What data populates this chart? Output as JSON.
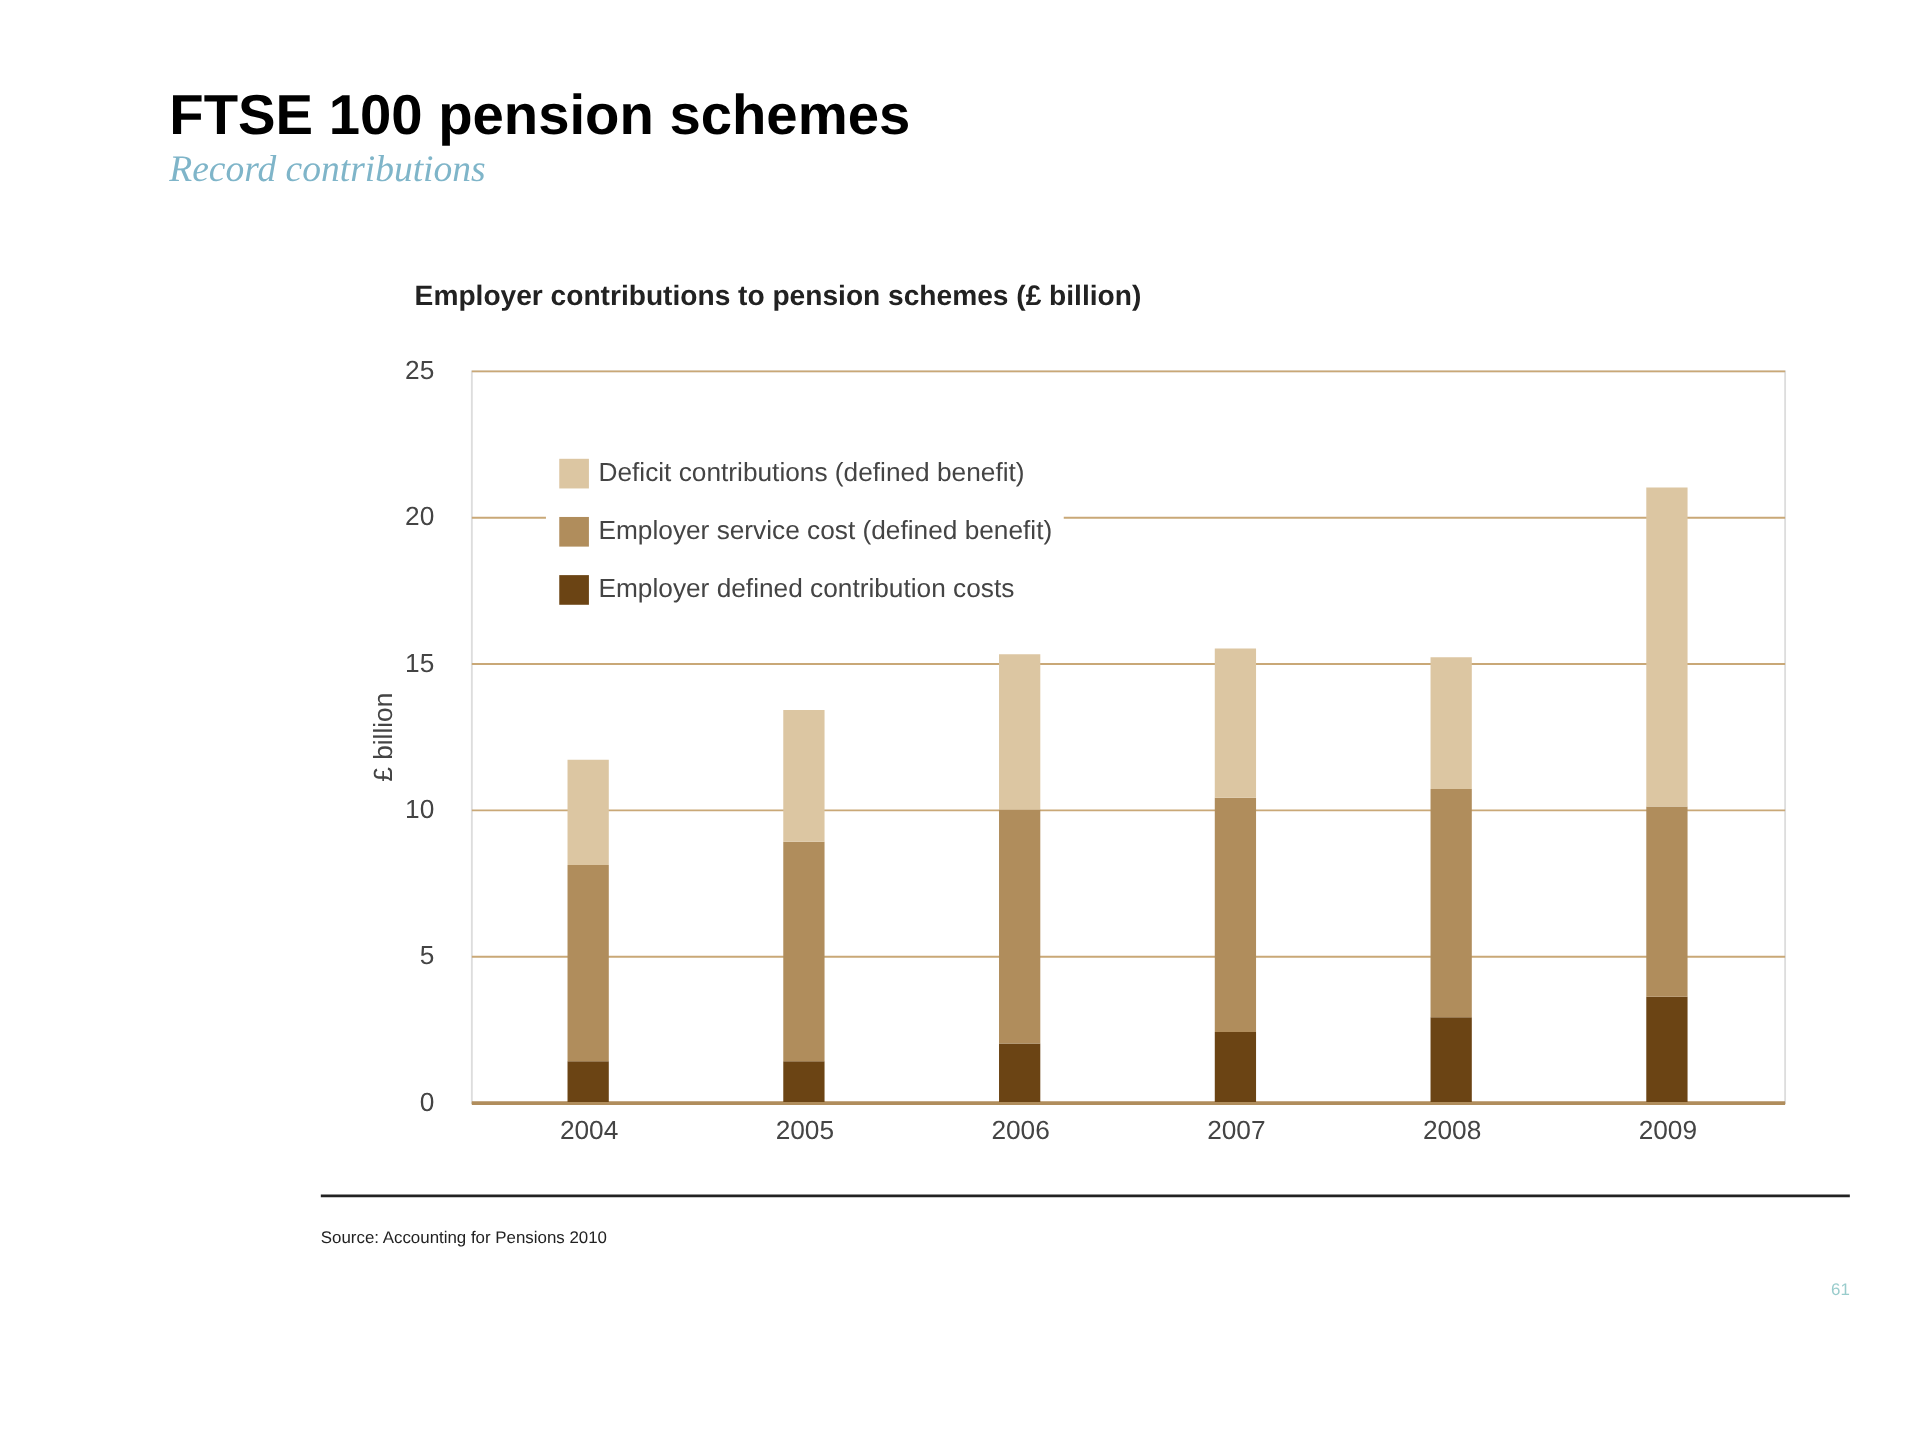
{
  "chart_data": {
    "type": "bar",
    "title": "FTSE 100 pension schemes",
    "subtitle": "Record contributions",
    "ylabel": "£ billion",
    "categories": [
      "2004",
      "2005",
      "2006",
      "2007",
      "2008",
      "2009"
    ],
    "stacked": true,
    "series": [
      {
        "name": "Employer defined contribution costs",
        "color": "#6b4414",
        "values": [
          1.4,
          1.4,
          2.0,
          2.4,
          2.9,
          3.6
        ]
      },
      {
        "name": "Employer service cost (defined benefit)",
        "color": "#b08d5c",
        "values": [
          6.7,
          7.5,
          8.0,
          8.0,
          7.8,
          6.5
        ]
      },
      {
        "name": "Deficit contributions (defined benefit)",
        "color": "#dcc6a2",
        "values": [
          3.6,
          4.5,
          5.3,
          5.1,
          4.5,
          10.9
        ]
      }
    ],
    "ylim": [
      0,
      25
    ],
    "yticks": [
      0,
      5,
      10,
      15,
      20,
      25
    ],
    "grid": "y",
    "legend": "top left",
    "annotations": [
      "Employer contributions to pension schemes (£ billion)",
      "Source: Accounting for Pensions 2010",
      "61"
    ]
  }
}
